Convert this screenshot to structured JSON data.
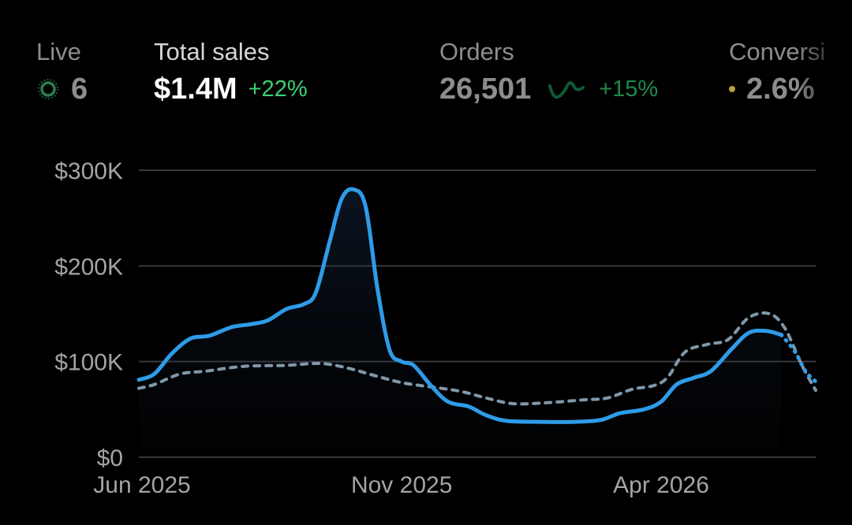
{
  "kpis": {
    "live": {
      "label": "Live",
      "value": "6",
      "color": "#2e7d4f"
    },
    "total_sales": {
      "label": "Total sales",
      "value": "$1.4M",
      "delta": "+22%",
      "delta_color": "#3ecf74"
    },
    "orders": {
      "label": "Orders",
      "value": "26,501",
      "delta": "+15%",
      "delta_color": "#1e8a4a"
    },
    "conversion": {
      "label": "Conversi",
      "value": "2.6%",
      "dot_color": "#b8a03a"
    }
  },
  "colors": {
    "current": "#2f9be8",
    "comparison": "#7f98aa",
    "grid": "#3a3a3e",
    "background": "#000000"
  },
  "chart_data": {
    "type": "line",
    "ylim": [
      0,
      300000
    ],
    "yticks": [
      {
        "value": 0,
        "label": "$0"
      },
      {
        "value": 100000,
        "label": "$100K"
      },
      {
        "value": 200000,
        "label": "$200K"
      },
      {
        "value": 300000,
        "label": "$300K"
      }
    ],
    "xlim": [
      "2025-06-01",
      "2026-06-30"
    ],
    "xticks": [
      {
        "value": "2025-06-01",
        "label": "Jun 2025"
      },
      {
        "value": "2025-11-01",
        "label": "Nov 2025"
      },
      {
        "value": "2026-04-01",
        "label": "Apr 2026"
      }
    ],
    "grid": true,
    "series": [
      {
        "line": "solid",
        "projected_from": "2026-06-10",
        "points": [
          [
            "2025-06-01",
            81000
          ],
          [
            "2025-06-10",
            87000
          ],
          [
            "2025-06-20",
            108000
          ],
          [
            "2025-07-01",
            124000
          ],
          [
            "2025-07-12",
            127000
          ],
          [
            "2025-07-25",
            136000
          ],
          [
            "2025-08-05",
            139000
          ],
          [
            "2025-08-15",
            143000
          ],
          [
            "2025-08-26",
            155000
          ],
          [
            "2025-09-05",
            160000
          ],
          [
            "2025-09-12",
            172000
          ],
          [
            "2025-09-20",
            225000
          ],
          [
            "2025-09-27",
            270000
          ],
          [
            "2025-10-04",
            280000
          ],
          [
            "2025-10-11",
            262000
          ],
          [
            "2025-10-18",
            175000
          ],
          [
            "2025-10-25",
            112000
          ],
          [
            "2025-11-01",
            100000
          ],
          [
            "2025-11-08",
            96000
          ],
          [
            "2025-11-18",
            75000
          ],
          [
            "2025-11-28",
            58000
          ],
          [
            "2025-12-10",
            53000
          ],
          [
            "2025-12-20",
            44000
          ],
          [
            "2026-01-01",
            38000
          ],
          [
            "2026-01-20",
            37000
          ],
          [
            "2026-02-10",
            37000
          ],
          [
            "2026-02-25",
            39000
          ],
          [
            "2026-03-08",
            46000
          ],
          [
            "2026-03-22",
            50000
          ],
          [
            "2026-04-01",
            58000
          ],
          [
            "2026-04-10",
            76000
          ],
          [
            "2026-04-20",
            83000
          ],
          [
            "2026-04-30",
            90000
          ],
          [
            "2026-05-12",
            113000
          ],
          [
            "2026-05-22",
            130000
          ],
          [
            "2026-06-01",
            132000
          ],
          [
            "2026-06-10",
            128000
          ],
          [
            "2026-06-18",
            110000
          ],
          [
            "2026-06-24",
            90000
          ],
          [
            "2026-06-30",
            79000
          ]
        ]
      },
      {
        "line": "dashed",
        "points": [
          [
            "2025-06-01",
            72000
          ],
          [
            "2025-06-10",
            76000
          ],
          [
            "2025-06-25",
            87000
          ],
          [
            "2025-07-10",
            90000
          ],
          [
            "2025-08-01",
            95000
          ],
          [
            "2025-08-25",
            96000
          ],
          [
            "2025-09-15",
            98000
          ],
          [
            "2025-10-01",
            93000
          ],
          [
            "2025-10-15",
            86000
          ],
          [
            "2025-11-01",
            78000
          ],
          [
            "2025-11-20",
            73000
          ],
          [
            "2025-12-05",
            69000
          ],
          [
            "2025-12-20",
            62000
          ],
          [
            "2026-01-05",
            56000
          ],
          [
            "2026-01-25",
            57000
          ],
          [
            "2026-02-15",
            60000
          ],
          [
            "2026-03-01",
            62000
          ],
          [
            "2026-03-15",
            71000
          ],
          [
            "2026-03-28",
            75000
          ],
          [
            "2026-04-05",
            84000
          ],
          [
            "2026-04-15",
            110000
          ],
          [
            "2026-04-28",
            118000
          ],
          [
            "2026-05-10",
            123000
          ],
          [
            "2026-05-22",
            146000
          ],
          [
            "2026-06-03",
            150000
          ],
          [
            "2026-06-12",
            135000
          ],
          [
            "2026-06-22",
            96000
          ],
          [
            "2026-06-30",
            70000
          ]
        ]
      }
    ]
  }
}
